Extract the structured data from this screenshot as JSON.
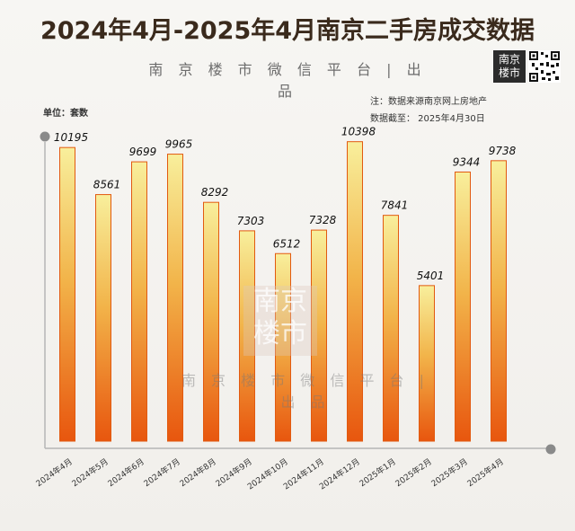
{
  "title": "2024年4月-2025年4月南京二手房成交数据",
  "platform_watermark": "南 京 楼 市 微 信 平 台 | 出 品",
  "logo_text_line1": "南京",
  "logo_text_line2": "楼市",
  "note": "注：数据来源南京网上房地产",
  "data_cutoff": "数据截至：  2025年4月30日",
  "unit_label": "单位：套数",
  "chart_data": {
    "type": "bar",
    "title": "2024年4月-2025年4月南京二手房成交数据",
    "ylabel": "单位：套数",
    "categories": [
      "2024年4月",
      "2024年5月",
      "2024年6月",
      "2024年7月",
      "2024年8月",
      "2024年9月",
      "2024年10月",
      "2024年11月",
      "2024年12月",
      "2025年1月",
      "2025年2月",
      "2025年3月",
      "2025年4月"
    ],
    "values": [
      10195,
      8561,
      9699,
      9965,
      8292,
      7303,
      6512,
      7328,
      10398,
      7841,
      5401,
      9344,
      9738
    ],
    "ylim": [
      0,
      10700
    ],
    "grid": false,
    "legend": "none",
    "bar_gradient": [
      "#f8ef9c",
      "#e8560e"
    ]
  }
}
